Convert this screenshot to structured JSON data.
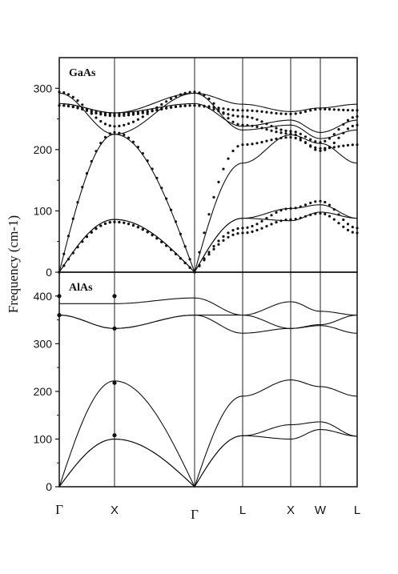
{
  "chart_data": [
    {
      "type": "line",
      "title": "GaAs",
      "ylabel": "Frequency (cm-1)",
      "ylim": [
        0,
        350
      ],
      "yticks": [
        0,
        100,
        200,
        300
      ],
      "x_points": [
        "Γ",
        "X",
        "Γ",
        "L",
        "X",
        "W",
        "L"
      ],
      "x": [
        0,
        1,
        2.5,
        3.37,
        4.07,
        4.63,
        5.33
      ],
      "series": [
        {
          "style": "line",
          "values": [
            0,
            86,
            0,
            88,
            84,
            98,
            88
          ]
        },
        {
          "style": "line",
          "values": [
            0,
            86,
            0,
            88,
            104,
            110,
            88
          ]
        },
        {
          "style": "line",
          "values": [
            0,
            225,
            0,
            178,
            224,
            210,
            178
          ]
        },
        {
          "style": "line",
          "values": [
            275,
            260,
            292,
            274,
            262,
            268,
            274
          ]
        },
        {
          "style": "line",
          "values": [
            275,
            260,
            275,
            238,
            248,
            228,
            248
          ]
        },
        {
          "style": "line",
          "values": [
            292,
            225,
            292,
            232,
            240,
            218,
            232
          ]
        },
        {
          "style": "points",
          "values": [
            0,
            82,
            0,
            64,
            86,
            96,
            64
          ]
        },
        {
          "style": "points",
          "values": [
            0,
            82,
            0,
            72,
            104,
            116,
            72
          ]
        },
        {
          "style": "points",
          "values": [
            0,
            228,
            0,
            208,
            220,
            202,
            208
          ]
        },
        {
          "style": "points",
          "values": [
            272,
            255,
            272,
            264,
            258,
            266,
            264
          ]
        },
        {
          "style": "points",
          "values": [
            272,
            258,
            272,
            254,
            230,
            212,
            254
          ]
        },
        {
          "style": "points",
          "values": [
            294,
            238,
            294,
            240,
            226,
            198,
            240
          ]
        }
      ]
    },
    {
      "type": "line",
      "title": "AlAs",
      "ylim": [
        0,
        450
      ],
      "yticks": [
        0,
        100,
        200,
        300,
        400
      ],
      "x_points": [
        "Γ",
        "X",
        "Γ",
        "L",
        "X",
        "W",
        "L"
      ],
      "x": [
        0,
        1,
        2.5,
        3.37,
        4.07,
        4.63,
        5.33
      ],
      "series": [
        {
          "style": "line",
          "values": [
            0,
            100,
            0,
            107,
            100,
            120,
            106
          ]
        },
        {
          "style": "line",
          "values": [
            0,
            100,
            0,
            107,
            130,
            136,
            106
          ]
        },
        {
          "style": "line",
          "values": [
            0,
            222,
            0,
            190,
            224,
            210,
            190
          ]
        },
        {
          "style": "line",
          "values": [
            360,
            332,
            360,
            322,
            332,
            338,
            322
          ]
        },
        {
          "style": "line",
          "values": [
            360,
            332,
            360,
            360,
            332,
            340,
            360
          ]
        },
        {
          "style": "line",
          "values": [
            384,
            384,
            396,
            360,
            388,
            368,
            360
          ]
        },
        {
          "style": "points",
          "x": [
            0,
            1,
            0,
            1,
            1,
            1
          ],
          "values": [
            400,
            400,
            360,
            332,
            218,
            108
          ]
        }
      ]
    }
  ]
}
